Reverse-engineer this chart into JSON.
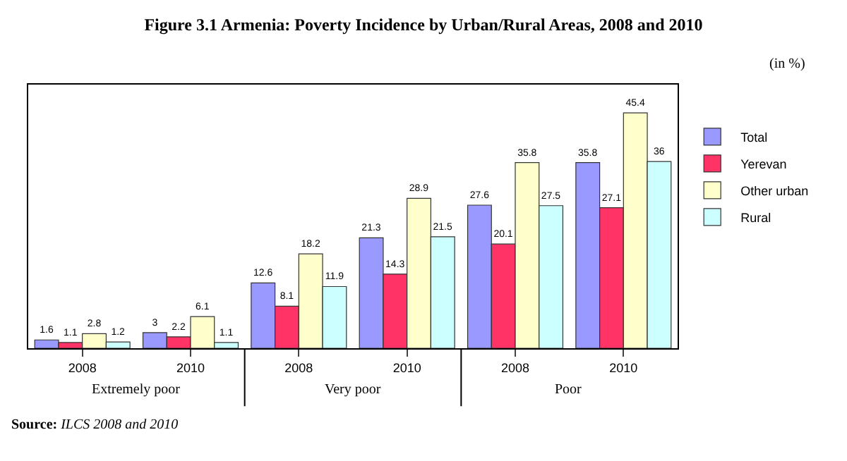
{
  "chart_data": {
    "type": "bar",
    "title": "Figure 3.1 Armenia: Poverty Incidence by Urban/Rural Areas, 2008 and 2010",
    "categories": [
      "2008",
      "2010",
      "2008",
      "2010",
      "2008",
      "2010"
    ],
    "series": [
      {
        "name": "Total",
        "color": "#9999ff",
        "values": [
          1.6,
          3,
          12.6,
          21.3,
          27.6,
          35.8
        ]
      },
      {
        "name": "Yerevan",
        "color": "#ff3366",
        "values": [
          1.1,
          2.2,
          8.1,
          14.3,
          20.1,
          27.1
        ]
      },
      {
        "name": "Other urban",
        "color": "#ffffcc",
        "values": [
          2.8,
          6.1,
          18.2,
          28.9,
          35.8,
          45.4
        ]
      },
      {
        "name": "Rural",
        "color": "#ccffff",
        "values": [
          1.2,
          1.1,
          11.9,
          21.5,
          27.5,
          36
        ]
      }
    ],
    "data_labels": true,
    "legend": "right",
    "annotations": [
      "(in %)",
      "Extremely poor",
      "Very poor",
      "Poor",
      "Source: ILCS 2008 and 2010"
    ]
  }
}
